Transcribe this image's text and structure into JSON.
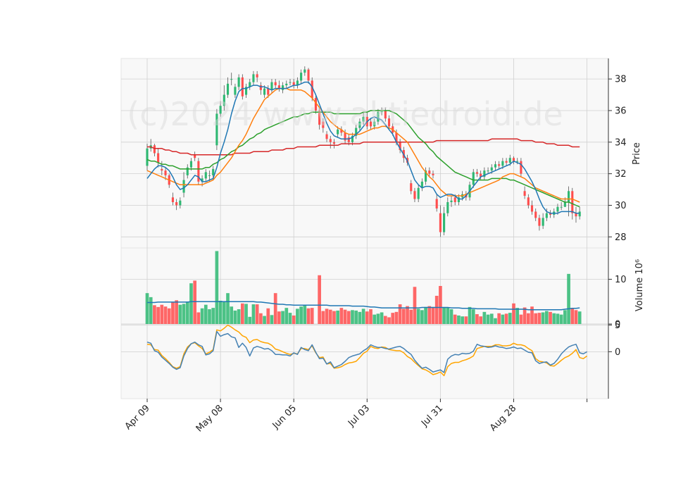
{
  "chart_data": {
    "type": "candlestick",
    "watermark": "(c)2024 www.aktiedroid.de",
    "colors": {
      "up": "#2eb872",
      "down": "#ff4d4d",
      "ma_fast": "#1f77b4",
      "ma_mid": "#ff7f0e",
      "ma_slow": "#2ca02c",
      "ma_long": "#d62728",
      "osc_a": "#4682b4",
      "osc_b": "#ffa500",
      "vol_ma": "#1f77b4",
      "grid": "#d0d0d0",
      "panel_bg": "#f8f8f8"
    },
    "price_panel": {
      "ylabel": "Price",
      "ylim": [
        27.3,
        39.3
      ],
      "yticks": [
        28,
        30,
        32,
        34,
        36,
        38
      ]
    },
    "volume_panel": {
      "ylabel": "Volume  10⁶",
      "ylim": [
        0,
        17
      ],
      "yticks": [
        0,
        10
      ]
    },
    "oscillator_panel": {
      "ylim": [
        -8.8,
        5.2
      ],
      "yticks": [
        0,
        5
      ]
    },
    "x_labels": [
      {
        "index": 0,
        "label": "Apr 09"
      },
      {
        "index": 20,
        "label": "May 08"
      },
      {
        "index": 40,
        "label": "Jun 05"
      },
      {
        "index": 60,
        "label": "Jul 03"
      },
      {
        "index": 80,
        "label": "Jul 31"
      },
      {
        "index": 100,
        "label": "Aug 28"
      },
      {
        "index": 120,
        "label": ""
      }
    ],
    "close": [
      33.6,
      33.8,
      33.3,
      32.7,
      32.2,
      31.9,
      31.3,
      30.2,
      30.0,
      30.3,
      31.6,
      32.4,
      32.8,
      33.0,
      31.5,
      31.7,
      32.1,
      31.9,
      32.3,
      35.8,
      36.3,
      37.0,
      37.7,
      38.0,
      37.5,
      38.1,
      36.9,
      37.5,
      37.8,
      38.3,
      38.1,
      37.3,
      37.4,
      37.0,
      37.8,
      37.6,
      37.4,
      37.6,
      37.7,
      37.8,
      37.6,
      37.9,
      38.4,
      38.6,
      37.9,
      36.8,
      36.0,
      35.1,
      34.9,
      34.2,
      34.0,
      33.9,
      34.8,
      34.6,
      34.1,
      34.0,
      34.4,
      34.9,
      35.3,
      35.6,
      35.0,
      35.0,
      35.3,
      35.9,
      36.0,
      35.5,
      35.0,
      34.6,
      34.0,
      33.5,
      33.0,
      32.7,
      30.9,
      30.4,
      31.1,
      31.5,
      32.2,
      32.0,
      31.9,
      29.8,
      28.3,
      29.5,
      30.2,
      30.3,
      30.2,
      30.5,
      30.7,
      30.5,
      31.3,
      32.1,
      32.0,
      31.8,
      32.2,
      32.2,
      32.4,
      32.6,
      32.5,
      32.8,
      32.7,
      33.0,
      32.8,
      32.8,
      32.0,
      30.6,
      30.0,
      29.6,
      29.2,
      28.7,
      29.2,
      29.5,
      29.4,
      29.6,
      29.9,
      29.9,
      30.2,
      30.9,
      29.5,
      29.3,
      29.6
    ],
    "open": [
      32.5,
      33.6,
      33.8,
      33.3,
      32.3,
      32.2,
      31.9,
      30.5,
      30.2,
      30.0,
      30.8,
      31.9,
      32.4,
      33.2,
      32.8,
      31.5,
      31.7,
      31.9,
      31.9,
      33.8,
      35.8,
      36.3,
      37.0,
      38.0,
      37.0,
      37.5,
      38.1,
      37.0,
      37.5,
      37.8,
      38.3,
      37.6,
      37.0,
      37.4,
      37.3,
      37.8,
      37.6,
      37.3,
      37.6,
      37.8,
      37.8,
      37.6,
      37.9,
      38.4,
      38.6,
      37.9,
      36.8,
      36.0,
      35.3,
      34.5,
      34.2,
      34.0,
      34.5,
      34.8,
      34.6,
      34.3,
      34.0,
      34.4,
      34.9,
      35.3,
      35.6,
      35.3,
      35.0,
      35.3,
      35.9,
      36.0,
      35.5,
      35.0,
      34.6,
      34.0,
      33.5,
      33.0,
      31.4,
      30.9,
      30.4,
      31.1,
      31.5,
      32.2,
      32.0,
      30.4,
      29.5,
      28.3,
      29.5,
      30.2,
      30.5,
      30.2,
      30.5,
      30.7,
      30.5,
      31.3,
      32.1,
      32.0,
      31.8,
      32.2,
      32.2,
      32.4,
      32.6,
      32.5,
      32.8,
      32.7,
      33.0,
      32.8,
      32.8,
      30.9,
      30.5,
      30.0,
      29.6,
      29.2,
      28.7,
      29.2,
      29.5,
      29.4,
      29.6,
      29.9,
      29.9,
      30.2,
      30.9,
      29.5,
      29.3
    ],
    "high": [
      33.9,
      34.2,
      33.9,
      33.6,
      32.8,
      32.4,
      32.0,
      30.8,
      30.4,
      30.5,
      32.1,
      32.6,
      33.0,
      33.4,
      33.0,
      31.9,
      32.3,
      32.2,
      32.5,
      36.1,
      36.6,
      37.6,
      38.1,
      38.4,
      37.7,
      38.3,
      38.3,
      37.7,
      38.0,
      38.5,
      38.5,
      37.8,
      37.6,
      37.6,
      38.0,
      38.0,
      37.9,
      37.8,
      37.9,
      38.0,
      38.0,
      38.1,
      38.6,
      38.8,
      38.7,
      38.1,
      37.0,
      36.2,
      35.5,
      34.7,
      34.4,
      34.2,
      35.0,
      35.0,
      34.8,
      34.5,
      34.6,
      35.1,
      35.5,
      35.9,
      35.9,
      35.5,
      35.5,
      36.1,
      36.2,
      36.2,
      35.7,
      35.2,
      34.8,
      34.2,
      33.7,
      33.2,
      31.6,
      31.1,
      31.3,
      31.7,
      32.4,
      32.4,
      32.2,
      30.7,
      30.0,
      29.9,
      30.5,
      30.6,
      30.7,
      30.7,
      30.9,
      30.9,
      31.5,
      32.3,
      32.3,
      32.2,
      32.4,
      32.4,
      32.6,
      32.8,
      32.8,
      33.0,
      33.0,
      33.2,
      33.1,
      33.0,
      33.0,
      31.2,
      30.7,
      30.3,
      29.8,
      29.4,
      29.5,
      29.8,
      29.7,
      29.8,
      30.1,
      30.2,
      30.5,
      31.2,
      31.1,
      29.9,
      29.9
    ],
    "low": [
      32.2,
      33.4,
      33.1,
      32.4,
      31.9,
      31.6,
      31.1,
      30.0,
      29.7,
      29.8,
      30.5,
      31.7,
      32.2,
      32.8,
      31.3,
      31.2,
      31.5,
      31.5,
      31.6,
      33.5,
      35.6,
      36.0,
      36.8,
      37.6,
      36.8,
      37.3,
      36.7,
      36.8,
      37.3,
      37.6,
      37.8,
      37.0,
      36.8,
      36.8,
      37.1,
      37.4,
      37.2,
      37.1,
      37.4,
      37.6,
      37.4,
      37.4,
      37.7,
      38.2,
      37.7,
      36.6,
      35.8,
      34.8,
      34.6,
      34.0,
      33.6,
      33.6,
      34.3,
      34.4,
      33.9,
      33.8,
      33.8,
      34.2,
      34.7,
      35.1,
      34.8,
      34.8,
      34.8,
      35.1,
      35.7,
      35.3,
      34.8,
      34.4,
      33.8,
      33.3,
      32.7,
      32.5,
      30.7,
      30.2,
      30.2,
      30.9,
      31.3,
      31.8,
      31.7,
      29.6,
      28.0,
      28.1,
      29.3,
      29.9,
      30.0,
      30.0,
      30.3,
      30.3,
      30.3,
      31.1,
      31.8,
      31.6,
      31.6,
      32.0,
      32.0,
      32.2,
      32.3,
      32.3,
      32.5,
      32.5,
      32.6,
      32.6,
      31.8,
      30.4,
      29.8,
      29.4,
      29.0,
      28.4,
      28.5,
      29.0,
      29.2,
      29.2,
      29.4,
      29.7,
      29.9,
      29.3,
      29.1,
      28.9,
      29.1
    ],
    "volume": [
      6.9,
      6.0,
      4.2,
      3.8,
      4.3,
      3.9,
      3.5,
      4.8,
      5.3,
      4.3,
      4.5,
      5.0,
      9.1,
      9.7,
      2.6,
      3.5,
      4.3,
      3.3,
      3.6,
      16.3,
      5.2,
      4.9,
      6.9,
      3.9,
      3.0,
      3.3,
      4.6,
      4.5,
      1.6,
      4.4,
      4.4,
      2.4,
      1.8,
      3.5,
      2.0,
      6.9,
      2.8,
      2.9,
      3.6,
      2.5,
      1.9,
      3.4,
      3.9,
      4.3,
      3.5,
      3.6,
      0.0,
      10.9,
      2.9,
      3.4,
      3.2,
      2.9,
      3.0,
      3.6,
      3.2,
      2.9,
      3.1,
      3.0,
      2.7,
      3.4,
      2.8,
      3.3,
      2.1,
      2.3,
      2.6,
      1.8,
      1.5,
      2.5,
      2.7,
      4.4,
      3.4,
      4.0,
      3.2,
      8.3,
      3.4,
      3.1,
      3.8,
      4.0,
      3.8,
      6.3,
      8.5,
      3.7,
      3.7,
      3.3,
      2.1,
      1.9,
      1.7,
      1.7,
      3.8,
      3.3,
      2.2,
      1.7,
      2.7,
      2.1,
      2.3,
      1.3,
      2.4,
      2.1,
      2.3,
      2.5,
      4.6,
      3.6,
      2.1,
      3.7,
      2.4,
      3.9,
      2.4,
      2.5,
      2.6,
      2.9,
      2.7,
      2.4,
      2.3,
      2.1,
      3.1,
      11.2,
      3.6,
      3.1,
      2.8
    ],
    "ma_fast": [
      31.7,
      32.0,
      32.3,
      32.5,
      32.5,
      32.4,
      32.2,
      31.8,
      31.3,
      31.0,
      31.1,
      31.3,
      31.6,
      31.9,
      31.8,
      31.5,
      31.5,
      31.6,
      31.7,
      32.4,
      33.3,
      34.0,
      34.8,
      35.8,
      36.6,
      37.2,
      37.4,
      37.4,
      37.5,
      37.6,
      37.6,
      37.5,
      37.5,
      37.4,
      37.3,
      37.4,
      37.4,
      37.4,
      37.4,
      37.5,
      37.6,
      37.6,
      37.7,
      37.8,
      37.8,
      37.5,
      37.0,
      36.4,
      35.8,
      35.2,
      34.7,
      34.4,
      34.3,
      34.2,
      34.2,
      34.2,
      34.3,
      34.5,
      34.7,
      35.0,
      35.3,
      35.5,
      35.6,
      35.5,
      35.4,
      35.1,
      34.8,
      34.5,
      34.0,
      33.6,
      33.2,
      32.8,
      32.2,
      31.6,
      31.3,
      31.1,
      31.2,
      31.2,
      31.1,
      30.7,
      30.5,
      30.6,
      30.7,
      30.7,
      30.6,
      30.4,
      30.4,
      30.6,
      30.9,
      31.2,
      31.5,
      31.8,
      31.9,
      32.0,
      32.1,
      32.2,
      32.3,
      32.4,
      32.5,
      32.6,
      32.8,
      32.7,
      32.6,
      32.3,
      31.9,
      31.5,
      31.0,
      30.4,
      29.9,
      29.6,
      29.5,
      29.5,
      29.5,
      29.6,
      29.6,
      29.6,
      29.6,
      29.5,
      29.5
    ],
    "ma_mid": [
      32.2,
      32.1,
      32.0,
      31.9,
      31.8,
      31.7,
      31.6,
      31.5,
      31.4,
      31.3,
      31.3,
      31.3,
      31.3,
      31.3,
      31.3,
      31.3,
      31.4,
      31.5,
      31.6,
      31.9,
      32.1,
      32.4,
      32.7,
      33.0,
      33.4,
      33.8,
      34.1,
      34.5,
      35.0,
      35.5,
      35.9,
      36.3,
      36.7,
      36.9,
      37.1,
      37.3,
      37.4,
      37.4,
      37.4,
      37.3,
      37.3,
      37.3,
      37.3,
      37.2,
      37.0,
      36.8,
      36.5,
      36.2,
      35.9,
      35.6,
      35.3,
      35.1,
      34.9,
      34.8,
      34.6,
      34.5,
      34.5,
      34.5,
      34.5,
      34.6,
      34.7,
      34.8,
      34.9,
      34.9,
      35.0,
      35.0,
      34.9,
      34.8,
      34.6,
      34.4,
      34.2,
      34.0,
      33.6,
      33.2,
      32.8,
      32.4,
      32.1,
      31.8,
      31.6,
      31.3,
      31.0,
      30.8,
      30.6,
      30.6,
      30.6,
      30.6,
      30.6,
      30.7,
      30.8,
      30.9,
      31.0,
      31.1,
      31.2,
      31.3,
      31.4,
      31.5,
      31.6,
      31.8,
      31.9,
      32.0,
      32.0,
      31.9,
      31.8,
      31.7,
      31.5,
      31.3,
      31.1,
      31.0,
      30.9,
      30.8,
      30.7,
      30.6,
      30.5,
      30.4,
      30.4,
      30.4,
      30.4,
      30.3,
      30.2
    ],
    "ma_slow": [
      32.9,
      32.8,
      32.8,
      32.7,
      32.6,
      32.6,
      32.5,
      32.5,
      32.4,
      32.3,
      32.3,
      32.3,
      32.3,
      32.3,
      32.3,
      32.3,
      32.4,
      32.4,
      32.6,
      32.7,
      32.9,
      33.0,
      33.2,
      33.4,
      33.5,
      33.7,
      33.8,
      34.0,
      34.2,
      34.3,
      34.5,
      34.6,
      34.8,
      34.9,
      35.0,
      35.1,
      35.2,
      35.3,
      35.4,
      35.5,
      35.6,
      35.6,
      35.7,
      35.8,
      35.8,
      35.9,
      35.9,
      35.9,
      35.9,
      35.9,
      35.9,
      35.8,
      35.8,
      35.8,
      35.8,
      35.8,
      35.8,
      35.8,
      35.8,
      35.9,
      35.9,
      36.0,
      36.0,
      36.0,
      36.0,
      36.0,
      36.0,
      35.9,
      35.8,
      35.6,
      35.4,
      35.2,
      34.9,
      34.6,
      34.3,
      34.1,
      33.9,
      33.6,
      33.4,
      33.1,
      32.9,
      32.7,
      32.5,
      32.3,
      32.1,
      32.0,
      31.9,
      31.8,
      31.7,
      31.6,
      31.6,
      31.6,
      31.6,
      31.6,
      31.7,
      31.7,
      31.7,
      31.7,
      31.7,
      31.6,
      31.6,
      31.5,
      31.4,
      31.3,
      31.2,
      31.1,
      31.0,
      30.9,
      30.8,
      30.7,
      30.6,
      30.5,
      30.4,
      30.3,
      30.2,
      30.2,
      30.1,
      30.0,
      29.9
    ],
    "ma_long": [
      33.7,
      33.7,
      33.6,
      33.6,
      33.6,
      33.5,
      33.5,
      33.4,
      33.4,
      33.3,
      33.3,
      33.3,
      33.2,
      33.2,
      33.2,
      33.2,
      33.2,
      33.2,
      33.2,
      33.2,
      33.2,
      33.2,
      33.2,
      33.2,
      33.3,
      33.3,
      33.3,
      33.3,
      33.3,
      33.4,
      33.4,
      33.4,
      33.4,
      33.4,
      33.5,
      33.5,
      33.5,
      33.5,
      33.6,
      33.6,
      33.6,
      33.7,
      33.7,
      33.7,
      33.7,
      33.7,
      33.7,
      33.8,
      33.8,
      33.8,
      33.8,
      33.8,
      33.8,
      33.9,
      33.9,
      33.9,
      33.9,
      33.9,
      33.9,
      34.0,
      34.0,
      34.0,
      34.0,
      34.0,
      34.0,
      34.0,
      34.0,
      34.0,
      34.0,
      34.0,
      34.0,
      34.0,
      34.0,
      34.0,
      34.0,
      34.0,
      34.0,
      34.0,
      34.0,
      34.1,
      34.1,
      34.1,
      34.1,
      34.1,
      34.1,
      34.1,
      34.1,
      34.1,
      34.1,
      34.1,
      34.1,
      34.1,
      34.1,
      34.1,
      34.2,
      34.2,
      34.2,
      34.2,
      34.2,
      34.2,
      34.2,
      34.2,
      34.1,
      34.1,
      34.1,
      34.1,
      34.0,
      34.0,
      34.0,
      33.9,
      33.9,
      33.9,
      33.8,
      33.8,
      33.8,
      33.8,
      33.7,
      33.7,
      33.7
    ],
    "vol_ma": [
      4.8,
      4.8,
      4.8,
      4.9,
      4.9,
      4.9,
      4.9,
      4.9,
      4.9,
      4.9,
      4.9,
      4.9,
      5.0,
      5.0,
      5.0,
      5.0,
      5.0,
      5.0,
      5.0,
      5.0,
      5.0,
      5.0,
      5.0,
      5.0,
      5.0,
      5.0,
      5.0,
      5.0,
      5.0,
      5.0,
      4.9,
      4.9,
      4.8,
      4.7,
      4.6,
      4.5,
      4.4,
      4.4,
      4.3,
      4.3,
      4.2,
      4.2,
      4.2,
      4.2,
      4.2,
      4.2,
      4.2,
      4.2,
      4.2,
      4.2,
      4.1,
      4.1,
      4.1,
      4.1,
      4.1,
      4.1,
      4.0,
      4.0,
      4.0,
      4.0,
      3.9,
      3.8,
      3.8,
      3.7,
      3.6,
      3.6,
      3.6,
      3.6,
      3.6,
      3.6,
      3.6,
      3.6,
      3.6,
      3.6,
      3.6,
      3.7,
      3.7,
      3.7,
      3.7,
      3.7,
      3.7,
      3.7,
      3.7,
      3.6,
      3.6,
      3.6,
      3.5,
      3.5,
      3.5,
      3.5,
      3.4,
      3.4,
      3.4,
      3.4,
      3.4,
      3.4,
      3.3,
      3.3,
      3.3,
      3.3,
      3.3,
      3.3,
      3.3,
      3.3,
      3.2,
      3.2,
      3.2,
      3.2,
      3.2,
      3.2,
      3.2,
      3.2,
      3.2,
      3.2,
      3.3,
      3.4,
      3.5,
      3.5,
      3.6
    ],
    "osc_a": [
      1.8,
      1.6,
      0.2,
      -0.1,
      -1.0,
      -1.6,
      -2.2,
      -2.9,
      -3.3,
      -3.0,
      -0.8,
      0.6,
      1.5,
      1.8,
      1.3,
      1.0,
      -0.6,
      -0.4,
      0.2,
      3.8,
      2.9,
      3.2,
      3.4,
      2.8,
      2.6,
      0.8,
      1.6,
      0.8,
      -0.8,
      0.7,
      1.0,
      0.8,
      0.5,
      0.6,
      0.2,
      -0.5,
      -0.5,
      -0.6,
      -0.6,
      -0.8,
      -0.2,
      -0.5,
      0.8,
      0.4,
      0.2,
      1.3,
      -0.1,
      -1.3,
      -1.2,
      -2.3,
      -1.9,
      -3.0,
      -2.7,
      -2.4,
      -1.8,
      -1.1,
      -0.8,
      -0.6,
      -0.4,
      0.2,
      0.6,
      1.3,
      1.0,
      0.8,
      0.8,
      0.6,
      0.5,
      0.7,
      0.9,
      1.0,
      0.6,
      0.0,
      -0.5,
      -1.6,
      -2.4,
      -3.1,
      -2.9,
      -3.3,
      -3.8,
      -3.6,
      -3.4,
      -3.9,
      -1.4,
      -0.8,
      -0.5,
      -0.6,
      -0.3,
      -0.4,
      -0.3,
      0.1,
      1.4,
      1.1,
      1.0,
      0.8,
      0.9,
      1.1,
      0.9,
      0.8,
      0.6,
      0.7,
      0.9,
      0.6,
      0.7,
      0.3,
      -0.1,
      -0.2,
      -1.7,
      -2.2,
      -2.0,
      -1.9,
      -2.5,
      -2.2,
      -1.4,
      -0.4,
      0.3,
      0.9,
      1.2,
      1.4,
      -0.2,
      -0.4,
      0.0
    ],
    "osc_b": [
      1.4,
      1.3,
      0.4,
      0.3,
      -0.7,
      -1.3,
      -2.0,
      -2.8,
      -3.1,
      -2.8,
      -0.4,
      0.9,
      1.5,
      1.7,
      1.1,
      0.6,
      -0.4,
      -0.1,
      0.4,
      4.1,
      3.9,
      4.4,
      5.0,
      4.6,
      4.1,
      3.7,
      3.0,
      2.7,
      1.7,
      2.2,
      2.3,
      1.9,
      1.7,
      1.6,
      1.2,
      0.5,
      0.3,
      0.0,
      -0.3,
      -0.5,
      -0.3,
      -0.4,
      0.6,
      0.6,
      0.4,
      1.1,
      -0.2,
      -1.1,
      -1.0,
      -2.3,
      -2.2,
      -3.1,
      -3.0,
      -2.8,
      -2.4,
      -2.1,
      -2.0,
      -1.8,
      -1.1,
      -0.3,
      0.1,
      1.0,
      0.7,
      0.6,
      0.9,
      0.8,
      0.4,
      0.3,
      0.2,
      0.2,
      -0.2,
      -0.9,
      -1.3,
      -2.0,
      -2.6,
      -3.2,
      -3.4,
      -3.8,
      -4.3,
      -4.1,
      -3.8,
      -4.5,
      -2.8,
      -2.2,
      -2.0,
      -2.0,
      -1.7,
      -1.5,
      -1.2,
      -0.8,
      0.6,
      0.8,
      1.0,
      1.0,
      1.0,
      1.3,
      1.3,
      1.1,
      1.1,
      1.2,
      1.6,
      1.3,
      1.3,
      1.1,
      0.6,
      0.2,
      -1.3,
      -1.8,
      -1.9,
      -2.1,
      -2.6,
      -2.7,
      -2.2,
      -1.6,
      -1.1,
      -0.8,
      -0.3,
      0.4,
      -1.1,
      -1.3,
      -0.8
    ]
  }
}
